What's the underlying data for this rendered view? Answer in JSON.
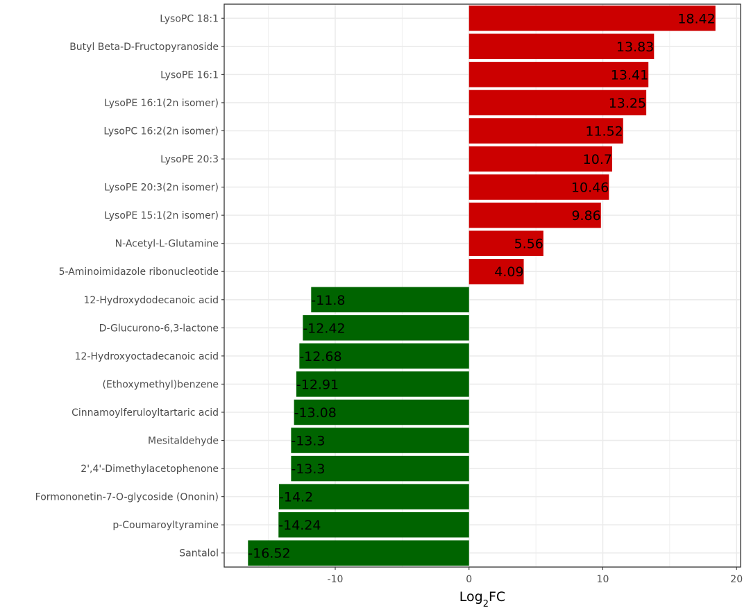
{
  "chart_data": {
    "type": "bar",
    "orientation": "horizontal",
    "categories": [
      "LysoPC 18:1",
      "Butyl Beta-D-Fructopyranoside",
      "LysoPE 16:1",
      "LysoPE 16:1(2n isomer)",
      "LysoPC 16:2(2n isomer)",
      "LysoPE 20:3",
      "LysoPE 20:3(2n isomer)",
      "LysoPE 15:1(2n isomer)",
      "N-Acetyl-L-Glutamine",
      "5-Aminoimidazole ribonucleotide",
      "12-Hydroxydodecanoic acid",
      "D-Glucurono-6,3-lactone",
      "12-Hydroxyoctadecanoic acid",
      "(Ethoxymethyl)benzene",
      "Cinnamoylferuloyltartaric acid",
      "Mesitaldehyde",
      "2',4'-Dimethylacetophenone",
      "Formononetin-7-O-glycoside (Ononin)",
      "p-Coumaroyltyramine",
      "Santalol"
    ],
    "values": [
      18.42,
      13.83,
      13.41,
      13.25,
      11.52,
      10.7,
      10.46,
      9.86,
      5.56,
      4.09,
      -11.8,
      -12.42,
      -12.68,
      -12.91,
      -13.08,
      -13.3,
      -13.3,
      -14.2,
      -14.24,
      -16.52
    ],
    "data_labels": [
      "18.42",
      "13.83",
      "13.41",
      "13.25",
      "11.52",
      "10.7",
      "10.46",
      "9.86",
      "5.56",
      "4.09",
      "-11.8",
      "-12.42",
      "-12.68",
      "-12.91",
      "-13.08",
      "-13.3",
      "-13.3",
      "-14.2",
      "-14.24",
      "-16.52"
    ],
    "xlabel": {
      "main": "Log",
      "sub": "2",
      "rest": "FC"
    },
    "xlim": [
      -18.3,
      20.3
    ],
    "xticks": [
      -10,
      0,
      10,
      20
    ],
    "xtick_labels": [
      "-10",
      "0",
      "10",
      "20"
    ],
    "grid": true,
    "colors": {
      "positive": "#cc0000",
      "negative": "#006400",
      "grid": "#ebebeb",
      "border": "#333333"
    }
  }
}
